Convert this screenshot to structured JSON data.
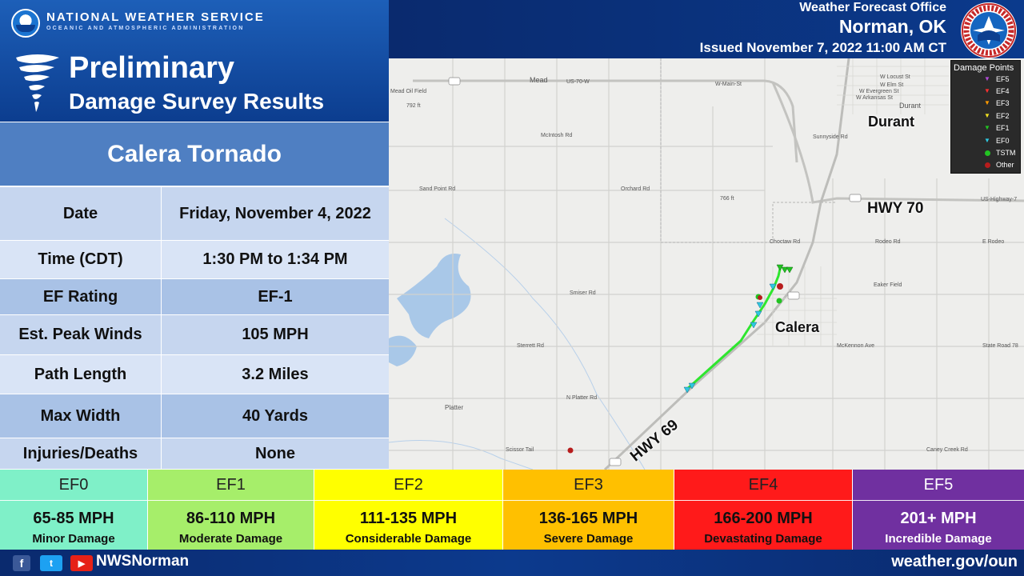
{
  "header": {
    "agency": "NATIONAL WEATHER SERVICE",
    "agency_sub": "OCEANIC AND ATMOSPHERIC ADMINISTRATION",
    "title_line1": "Preliminary",
    "title_line2": "Damage Survey Results",
    "office_line1": "Weather Forecast Office",
    "office_line2": "Norman, OK",
    "issued": "Issued November 7, 2022 11:00 AM CT"
  },
  "storm": {
    "name": "Calera Tornado",
    "rows": [
      {
        "label": "Date",
        "value": "Friday, November 4, 2022"
      },
      {
        "label": "Time (CDT)",
        "value": "1:30 PM to 1:34 PM"
      },
      {
        "label": "EF Rating",
        "value": "EF-1"
      },
      {
        "label": "Est. Peak Winds",
        "value": "105 MPH"
      },
      {
        "label": "Path Length",
        "value": "3.2 Miles"
      },
      {
        "label": "Max Width",
        "value": "40 Yards"
      },
      {
        "label": "Injuries/Deaths",
        "value": "None"
      }
    ]
  },
  "map": {
    "legend_title": "Damage Points",
    "legend": [
      {
        "label": "EF5",
        "color": "#7b1fa2",
        "shape": "triangle"
      },
      {
        "label": "EF4",
        "color": "#d32f2f",
        "shape": "triangle"
      },
      {
        "label": "EF3",
        "color": "#f57c00",
        "shape": "triangle"
      },
      {
        "label": "EF2",
        "color": "#f0e020",
        "shape": "triangle"
      },
      {
        "label": "EF1",
        "color": "#22c322",
        "shape": "triangle"
      },
      {
        "label": "EF0",
        "color": "#2ec8e0",
        "shape": "triangle"
      },
      {
        "label": "TSTM",
        "color": "#22c322",
        "shape": "dot"
      },
      {
        "label": "Other",
        "color": "#b71c1c",
        "shape": "dot"
      }
    ],
    "cities": {
      "durant": "Durant",
      "calera": "Calera"
    },
    "highways": {
      "hwy70": "HWY 70",
      "hwy69": "HWY 69"
    },
    "roads": {
      "mead": "Mead",
      "us70w": "US-70-W",
      "wmain": "W-Main-St",
      "meadoil": "Mead Oil Field",
      "ft792": "792 ft",
      "mcintosh": "McIntosh Rd",
      "orchard": "Orchard Rd",
      "sandpoint": "Sand Point Rd",
      "choctaw": "Choctaw Rd",
      "smiser": "Smiser Rd",
      "sterrett": "Sterrett Rd",
      "nplatter": "N Platter Rd",
      "platter": "Platter",
      "scissortail": "Scissor Tail",
      "mckennon": "McKennon Ave",
      "staterd": "State Road 78",
      "rodeo": "Rodeo Rd",
      "eaker": "Eaker Field",
      "caneycreek": "Caney Creek Rd",
      "erodeo": "E Rodeo",
      "sunnyside": "Sunnyside Rd",
      "usturn": "US-Highway-7",
      "durantsm": "Durant",
      "ft766": "766 ft",
      "locust": "W Locust St",
      "elm": "W Elm St",
      "evergreen": "W Evergreen St",
      "arkansas": "W Arkansas St"
    }
  },
  "ef_scale": [
    {
      "rating": "EF0",
      "speed": "65-85 MPH",
      "desc": "Minor Damage",
      "color": "#7ff0c8"
    },
    {
      "rating": "EF1",
      "speed": "86-110 MPH",
      "desc": "Moderate Damage",
      "color": "#a6ee6a"
    },
    {
      "rating": "EF2",
      "speed": "111-135 MPH",
      "desc": "Considerable Damage",
      "color": "#ffff00"
    },
    {
      "rating": "EF3",
      "speed": "136-165 MPH",
      "desc": "Severe Damage",
      "color": "#ffc000"
    },
    {
      "rating": "EF4",
      "speed": "166-200 MPH",
      "desc": "Devastating Damage",
      "color": "#ff1a1a"
    },
    {
      "rating": "EF5",
      "speed": "201+ MPH",
      "desc": "Incredible Damage",
      "color": "#7030a0"
    }
  ],
  "footer": {
    "facebook": "f",
    "twitter": "t",
    "youtube": "▶",
    "handle": "NWSNorman",
    "website": "weather.gov/oun"
  }
}
